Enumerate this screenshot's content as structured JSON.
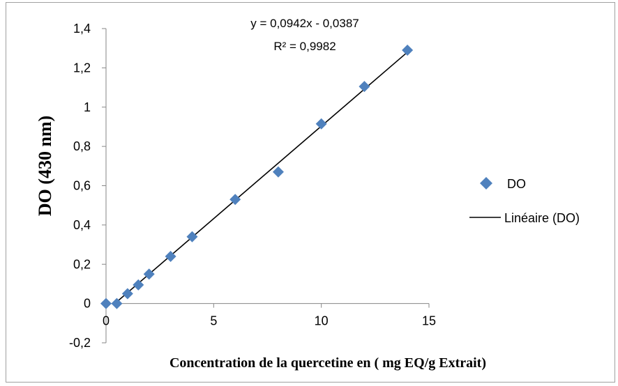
{
  "chart_data": {
    "type": "scatter",
    "xlabel": "Concentration de la quercetine  en ( mg EQ/g Extrait)",
    "ylabel": "DO (430 nm)",
    "xlim": [
      0,
      15
    ],
    "ylim": [
      -0.2,
      1.4
    ],
    "x_ticks": [
      "0",
      "5",
      "10",
      "15"
    ],
    "y_ticks": [
      "-0,2",
      "0",
      "0,2",
      "0,4",
      "0,6",
      "0,8",
      "1",
      "1,2",
      "1,4"
    ],
    "grid": false,
    "legend_position": "right",
    "series": [
      {
        "name": "DO",
        "marker": "diamond",
        "color": "#4f81bd",
        "x": [
          0,
          0.5,
          1,
          1.5,
          2,
          3,
          4,
          6,
          8,
          10,
          12,
          14
        ],
        "y": [
          0,
          0,
          0.05,
          0.095,
          0.15,
          0.24,
          0.34,
          0.53,
          0.67,
          0.915,
          1.105,
          1.29
        ]
      }
    ],
    "trendline": {
      "name": "Linéaire (DO)",
      "type": "linear",
      "slope": 0.0942,
      "intercept": -0.0387,
      "x_range": [
        0.41,
        14
      ],
      "color": "#000000",
      "equation": "y = 0,0942x - 0,0387",
      "r_squared": "R² = 0,9982"
    }
  }
}
